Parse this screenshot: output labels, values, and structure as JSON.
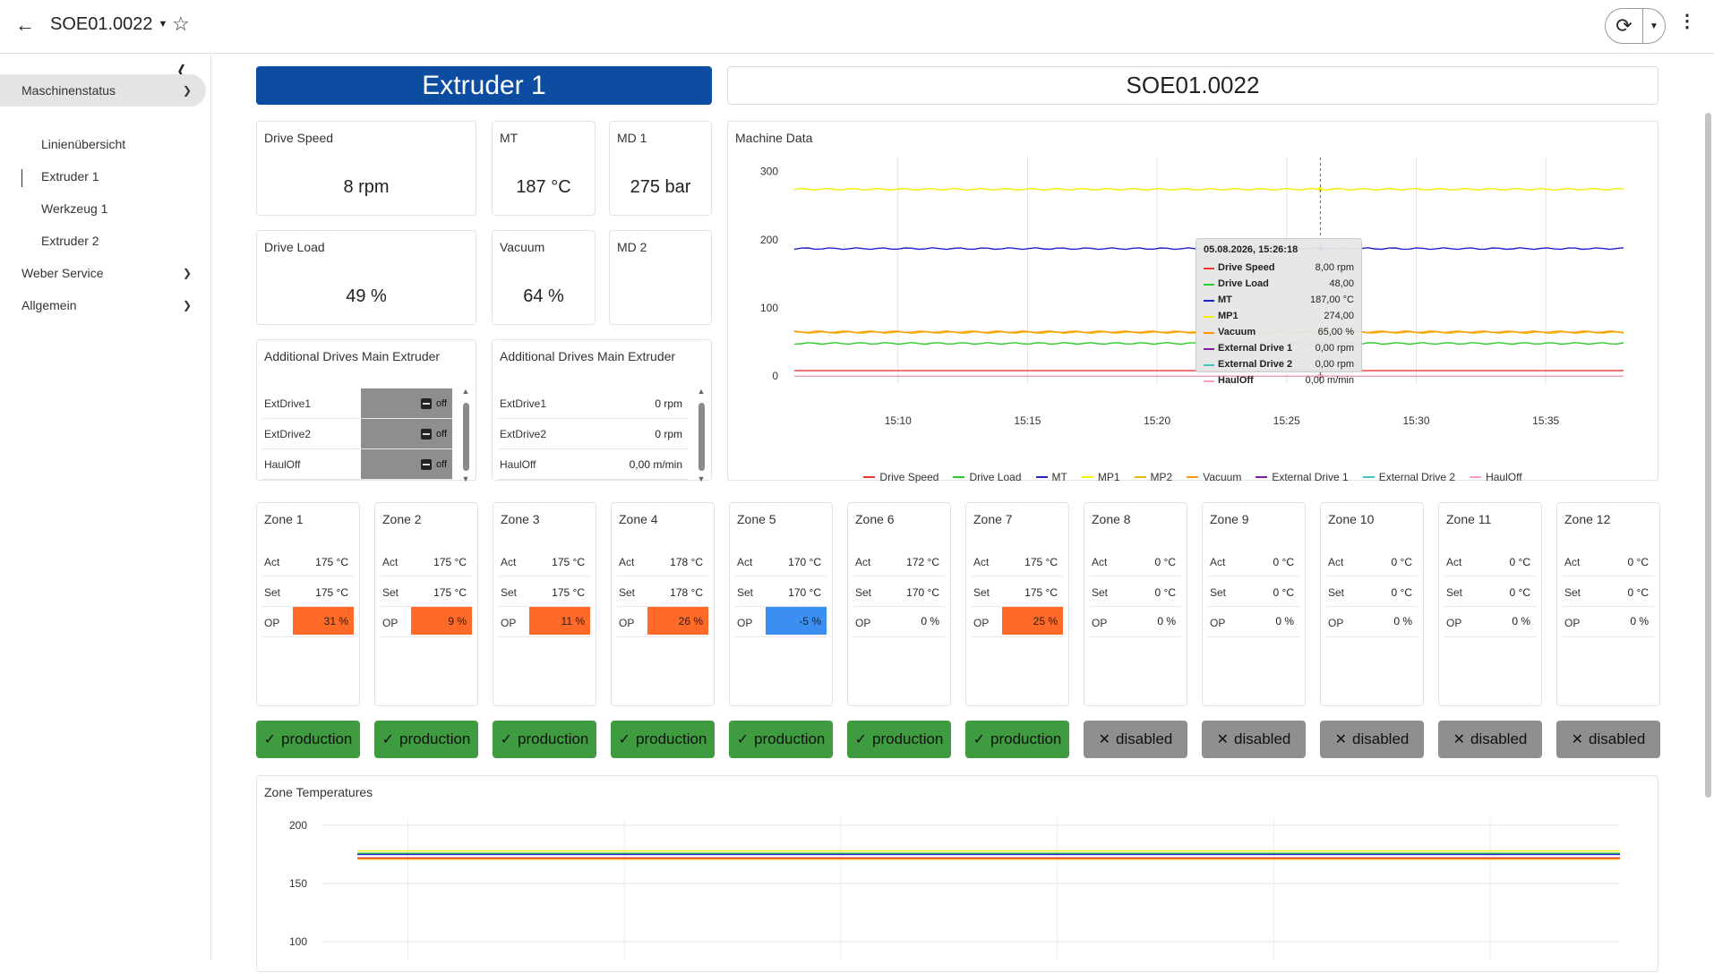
{
  "topbar": {
    "title": "SOE01.0022",
    "back_icon": "arrow-left-icon",
    "star_icon": "star-outline-icon",
    "refresh_icon": "refresh-icon",
    "more_icon": "more-vertical-icon"
  },
  "sidebar": {
    "items": [
      {
        "label": "Maschinenstatus",
        "expanded": true
      },
      {
        "label": "Weber Service",
        "expanded": false
      },
      {
        "label": "Allgemein",
        "expanded": false
      }
    ],
    "subitems": [
      "Linienübersicht",
      "Extruder 1",
      "Werkzeug 1",
      "Extruder 2"
    ],
    "active_subitem": "Extruder 1"
  },
  "banner": {
    "title": "Extruder 1",
    "serial": "SOE01.0022",
    "color": "#0d4da1"
  },
  "tiles": {
    "drive_speed": {
      "label": "Drive Speed",
      "value": "8 rpm"
    },
    "mt": {
      "label": "MT",
      "value": "187 °C"
    },
    "md1": {
      "label": "MD 1",
      "value": "275 bar"
    },
    "drive_load": {
      "label": "Drive Load",
      "value": "49 %"
    },
    "vacuum": {
      "label": "Vacuum",
      "value": "64 %"
    },
    "md2": {
      "label": "MD 2",
      "value": ""
    }
  },
  "drives1": {
    "title": "Additional Drives Main Extruder",
    "rows": [
      {
        "label": "ExtDrive1",
        "value": "off"
      },
      {
        "label": "ExtDrive2",
        "value": "off"
      },
      {
        "label": "HaulOff",
        "value": "off"
      }
    ]
  },
  "drives2": {
    "title": "Additional Drives Main Extruder",
    "rows": [
      {
        "label": "ExtDrive1",
        "value": "0 rpm"
      },
      {
        "label": "ExtDrive2",
        "value": "0 rpm"
      },
      {
        "label": "HaulOff",
        "value": "0,00 m/min"
      }
    ]
  },
  "machine_chart": {
    "title": "Machine Data",
    "tooltip": {
      "time": "05.08.2026, 15:26:18",
      "rows": [
        {
          "name": "Drive Speed",
          "value": "8,00 rpm",
          "color": "#e53935"
        },
        {
          "name": "Drive Load",
          "value": "48,00",
          "color": "#2ecc2e"
        },
        {
          "name": "MT",
          "value": "187,00 °C",
          "color": "#2222cc"
        },
        {
          "name": "MP1",
          "value": "274,00",
          "color": "#f0f000"
        },
        {
          "name": "Vacuum",
          "value": "65,00 %",
          "color": "#ff9800"
        },
        {
          "name": "External Drive 1",
          "value": "0,00 rpm",
          "color": "#7b1fa2"
        },
        {
          "name": "External Drive 2",
          "value": "0,00 rpm",
          "color": "#40c4c4"
        },
        {
          "name": "HaulOff",
          "value": "0,00 m/min",
          "color": "#f8a0b8"
        }
      ]
    }
  },
  "chart_data": [
    {
      "type": "line",
      "title": "Machine Data",
      "x_ticks": [
        "15:10",
        "15:15",
        "15:20",
        "15:25",
        "15:30",
        "15:35"
      ],
      "x_range": [
        "15:06",
        "15:38"
      ],
      "y_ticks": [
        "0",
        "100",
        "200",
        "300"
      ],
      "ylim": [
        -5,
        310
      ],
      "crosshair_x": "15:26:18",
      "grid": true,
      "legend": "bottom",
      "series": [
        {
          "name": "Drive Speed",
          "color": "#e53935",
          "value": 8
        },
        {
          "name": "Drive Load",
          "color": "#2ecc2e",
          "value": 48
        },
        {
          "name": "MT",
          "color": "#2222cc",
          "value": 187
        },
        {
          "name": "MP1",
          "color": "#f0f000",
          "value": 274
        },
        {
          "name": "MP2",
          "color": "#e6b800",
          "value": 64
        },
        {
          "name": "Vacuum",
          "color": "#ff9800",
          "value": 65
        },
        {
          "name": "External Drive 1",
          "color": "#7b1fa2",
          "value": 0
        },
        {
          "name": "External Drive 2",
          "color": "#40c4c4",
          "value": 0
        },
        {
          "name": "HaulOff",
          "color": "#f8a0b8",
          "value": 0
        }
      ]
    },
    {
      "type": "line",
      "title": "Zone Temperatures",
      "y_ticks": [
        "100",
        "150",
        "200"
      ],
      "ylim": [
        100,
        200
      ],
      "grid": true,
      "series": [
        {
          "color": "#f0f000",
          "value": 178
        },
        {
          "color": "#2ecc2e",
          "value": 176
        },
        {
          "color": "#2222cc",
          "value": 175
        },
        {
          "color": "#e53935",
          "value": 172
        },
        {
          "color": "#ff9800",
          "value": 171
        }
      ]
    }
  ],
  "zones": [
    {
      "name": "Zone 1",
      "act": "175 °C",
      "set": "175 °C",
      "op": "31 %",
      "opcolor": "#ff6a28",
      "status": "production"
    },
    {
      "name": "Zone 2",
      "act": "175 °C",
      "set": "175 °C",
      "op": "9 %",
      "opcolor": "#ff6a28",
      "status": "production"
    },
    {
      "name": "Zone 3",
      "act": "175 °C",
      "set": "175 °C",
      "op": "11 %",
      "opcolor": "#ff6a28",
      "status": "production"
    },
    {
      "name": "Zone 4",
      "act": "178 °C",
      "set": "178 °C",
      "op": "26 %",
      "opcolor": "#ff6a28",
      "status": "production"
    },
    {
      "name": "Zone 5",
      "act": "170 °C",
      "set": "170 °C",
      "op": "-5 %",
      "opcolor": "#3b8ff0",
      "status": "production"
    },
    {
      "name": "Zone 6",
      "act": "172 °C",
      "set": "170 °C",
      "op": "0 %",
      "opcolor": "",
      "status": "production"
    },
    {
      "name": "Zone 7",
      "act": "175 °C",
      "set": "175 °C",
      "op": "25 %",
      "opcolor": "#ff6a28",
      "status": "production"
    },
    {
      "name": "Zone 8",
      "act": "0 °C",
      "set": "0 °C",
      "op": "0 %",
      "opcolor": "",
      "status": "disabled"
    },
    {
      "name": "Zone 9",
      "act": "0 °C",
      "set": "0 °C",
      "op": "0 %",
      "opcolor": "",
      "status": "disabled"
    },
    {
      "name": "Zone 10",
      "act": "0 °C",
      "set": "0 °C",
      "op": "0 %",
      "opcolor": "",
      "status": "disabled"
    },
    {
      "name": "Zone 11",
      "act": "0 °C",
      "set": "0 °C",
      "op": "0 %",
      "opcolor": "",
      "status": "disabled"
    },
    {
      "name": "Zone 12",
      "act": "0 °C",
      "set": "0 °C",
      "op": "0 %",
      "opcolor": "",
      "status": "disabled"
    }
  ],
  "zone_labels": {
    "act": "Act",
    "set": "Set",
    "op": "OP"
  },
  "zone_chart": {
    "title": "Zone Temperatures"
  },
  "colors": {
    "production": "#3e9b3f",
    "disabled": "#8f8f8f",
    "accent": "#0d4da1"
  }
}
